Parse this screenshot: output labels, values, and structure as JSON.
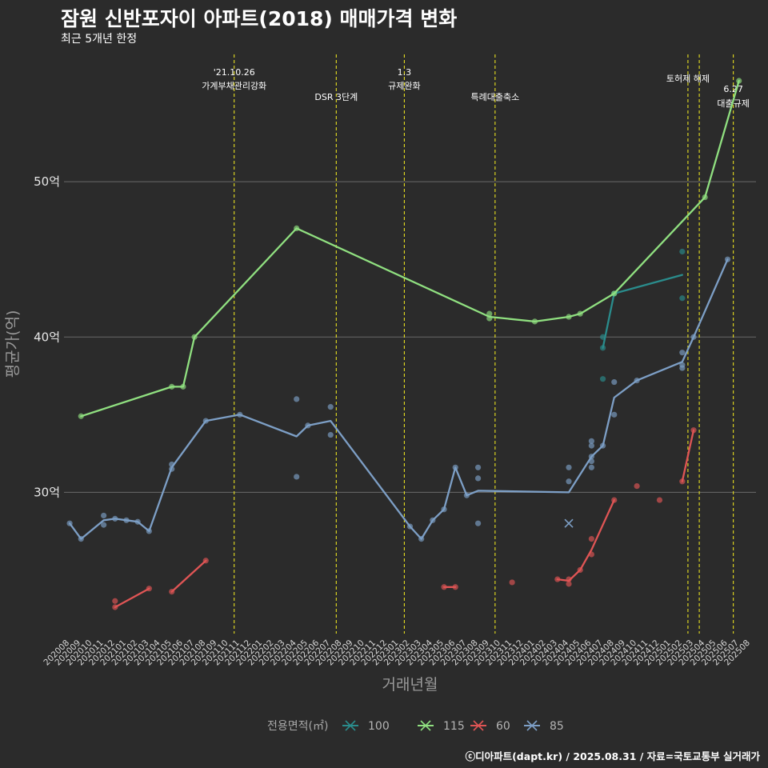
{
  "header": {
    "title": "잠원 신반포자이 아파트(2018) 매매가격 변화",
    "subtitle": "최근 5개년 한정"
  },
  "footer": {
    "credit": "ⓒ디아파트(dapt.kr) / 2025.08.31 / 자료=국토교통부 실거래가"
  },
  "chart_data": {
    "type": "line",
    "title": "잠원 신반포자이 아파트(2018) 매매가격 변화",
    "subtitle": "최근 5개년 한정",
    "xlabel": "거래년월",
    "ylabel": "평균가(억)",
    "x_unit": "month index (0 = 202008)",
    "ylim": [
      20.9,
      58.2
    ],
    "xlim": [
      -0.5,
      60.5
    ],
    "y_ticks": [
      {
        "value": 30,
        "label": "30억"
      },
      {
        "value": 40,
        "label": "40억"
      },
      {
        "value": 50,
        "label": "50억"
      }
    ],
    "x_tick_labels": [
      "202008",
      "202009",
      "202010",
      "202011",
      "202012",
      "202101",
      "202102",
      "202103",
      "202104",
      "202105",
      "202106",
      "202107",
      "202108",
      "202109",
      "202110",
      "202111",
      "202112",
      "202201",
      "202202",
      "202203",
      "202204",
      "202205",
      "202206",
      "202207",
      "202208",
      "202209",
      "202210",
      "202211",
      "202212",
      "202301",
      "202302",
      "202303",
      "202304",
      "202305",
      "202306",
      "202307",
      "202308",
      "202309",
      "202310",
      "202311",
      "202312",
      "202401",
      "202402",
      "202403",
      "202404",
      "202405",
      "202406",
      "202407",
      "202408",
      "202409",
      "202410",
      "202411",
      "202412",
      "202501",
      "202502",
      "202503",
      "202504",
      "202505",
      "202506",
      "202507",
      "202508"
    ],
    "legend": {
      "title": "전용면적(㎡)",
      "position": "bottom"
    },
    "events": [
      {
        "x": 14.5,
        "label1": "'21.10.26",
        "label2": "가계부채관리강화",
        "row": "top"
      },
      {
        "x": 23.5,
        "label1": "",
        "label2": "DSR 3단계",
        "row": "low"
      },
      {
        "x": 29.5,
        "label1": "1.3",
        "label2": "규제완화",
        "row": "top"
      },
      {
        "x": 37.5,
        "label1": "",
        "label2": "특례대출축소",
        "row": "low"
      },
      {
        "x": 54.5,
        "label1": "",
        "label2": "토허제 해제",
        "row": "top2"
      },
      {
        "x": 55.5,
        "label1": "",
        "label2": "",
        "row": "none"
      },
      {
        "x": 58.5,
        "label1": "6.27",
        "label2": "대출규제",
        "row": "right"
      }
    ],
    "series": [
      {
        "name": "100",
        "color": "#2a8c8c",
        "line": [
          [
            47,
            39.3
          ],
          [
            48,
            42.8
          ],
          [
            54,
            44.0
          ]
        ],
        "points": [
          [
            47,
            40.0
          ],
          [
            47,
            39.3
          ],
          [
            47,
            37.3
          ],
          [
            48,
            42.8
          ],
          [
            54,
            45.5
          ],
          [
            54,
            42.5
          ]
        ]
      },
      {
        "name": "115",
        "color": "#90e080",
        "line": [
          [
            1,
            34.9
          ],
          [
            9,
            36.8
          ],
          [
            10,
            36.8
          ],
          [
            11,
            40.0
          ],
          [
            20,
            47.0
          ],
          [
            37,
            41.3
          ],
          [
            41,
            41.0
          ],
          [
            44,
            41.3
          ],
          [
            45,
            41.5
          ],
          [
            48,
            42.8
          ],
          [
            56,
            49.0
          ],
          [
            59,
            56.5
          ]
        ],
        "points": [
          [
            1,
            34.9
          ],
          [
            9,
            36.8
          ],
          [
            10,
            36.8
          ],
          [
            11,
            40.0
          ],
          [
            20,
            47.0
          ],
          [
            37,
            41.5
          ],
          [
            37,
            41.2
          ],
          [
            41,
            41.0
          ],
          [
            44,
            41.3
          ],
          [
            45,
            41.5
          ],
          [
            48,
            42.8
          ],
          [
            56,
            49.0
          ],
          [
            59,
            56.5
          ]
        ]
      },
      {
        "name": "60",
        "color": "#e05555",
        "segments": [
          [
            [
              4,
              22.6
            ],
            [
              7,
              23.8
            ]
          ],
          [
            [
              9,
              23.6
            ],
            [
              12,
              25.6
            ]
          ],
          [
            [
              33,
              23.9
            ],
            [
              34,
              23.9
            ]
          ],
          [
            [
              43,
              24.4
            ],
            [
              44,
              24.3
            ],
            [
              45,
              25.0
            ],
            [
              46,
              26.3
            ],
            [
              48,
              29.5
            ]
          ],
          [
            [
              54,
              30.7
            ],
            [
              55,
              34.0
            ]
          ]
        ],
        "points": [
          [
            4,
            23.0
          ],
          [
            4,
            22.6
          ],
          [
            7,
            23.8
          ],
          [
            9,
            23.6
          ],
          [
            12,
            25.6
          ],
          [
            33,
            23.9
          ],
          [
            34,
            23.9
          ],
          [
            39,
            24.2
          ],
          [
            43,
            24.4
          ],
          [
            44,
            24.4
          ],
          [
            44,
            24.1
          ],
          [
            45,
            25.0
          ],
          [
            46,
            27.0
          ],
          [
            46,
            26.0
          ],
          [
            48,
            29.5
          ],
          [
            50,
            30.4
          ],
          [
            52,
            29.5
          ],
          [
            54,
            30.7
          ],
          [
            55,
            34.0
          ]
        ]
      },
      {
        "name": "85",
        "color": "#7d9fc6",
        "line": [
          [
            0,
            28.0
          ],
          [
            1,
            27.0
          ],
          [
            3,
            28.2
          ],
          [
            4,
            28.3
          ],
          [
            5,
            28.2
          ],
          [
            6,
            28.1
          ],
          [
            7,
            27.5
          ],
          [
            9,
            31.6
          ],
          [
            12,
            34.6
          ],
          [
            15,
            35.0
          ],
          [
            20,
            33.6
          ],
          [
            21,
            34.3
          ],
          [
            23,
            34.6
          ],
          [
            30,
            27.8
          ],
          [
            31,
            27.0
          ],
          [
            32,
            28.2
          ],
          [
            33,
            28.9
          ],
          [
            34,
            31.6
          ],
          [
            35,
            29.8
          ],
          [
            36,
            30.1
          ],
          [
            44,
            30.0
          ],
          [
            46,
            32.3
          ],
          [
            47,
            33.0
          ],
          [
            48,
            36.1
          ],
          [
            50,
            37.2
          ],
          [
            54,
            38.4
          ],
          [
            55,
            40.0
          ],
          [
            58,
            45.0
          ]
        ],
        "points": [
          [
            0,
            28.0
          ],
          [
            1,
            27.0
          ],
          [
            3,
            28.5
          ],
          [
            3,
            27.9
          ],
          [
            4,
            28.3
          ],
          [
            5,
            28.2
          ],
          [
            6,
            28.1
          ],
          [
            7,
            27.5
          ],
          [
            9,
            31.8
          ],
          [
            9,
            31.5
          ],
          [
            12,
            34.6
          ],
          [
            15,
            35.0
          ],
          [
            20,
            36.0
          ],
          [
            20,
            31.0
          ],
          [
            21,
            34.3
          ],
          [
            23,
            35.5
          ],
          [
            23,
            33.7
          ],
          [
            30,
            27.8
          ],
          [
            31,
            27.0
          ],
          [
            32,
            28.2
          ],
          [
            33,
            28.9
          ],
          [
            34,
            31.6
          ],
          [
            35,
            29.8
          ],
          [
            36,
            31.6
          ],
          [
            36,
            30.9
          ],
          [
            36,
            28.0
          ],
          [
            44,
            31.6
          ],
          [
            44,
            30.7
          ],
          [
            46,
            33.3
          ],
          [
            46,
            33.0
          ],
          [
            46,
            32.3
          ],
          [
            46,
            32.0
          ],
          [
            46,
            31.6
          ],
          [
            47,
            33.0
          ],
          [
            48,
            37.1
          ],
          [
            48,
            35.0
          ],
          [
            50,
            37.2
          ],
          [
            54,
            39.0
          ],
          [
            54,
            38.2
          ],
          [
            54,
            38.0
          ],
          [
            55,
            40.0
          ],
          [
            58,
            45.0
          ]
        ],
        "cross": [
          [
            44,
            28.0
          ]
        ]
      }
    ]
  }
}
